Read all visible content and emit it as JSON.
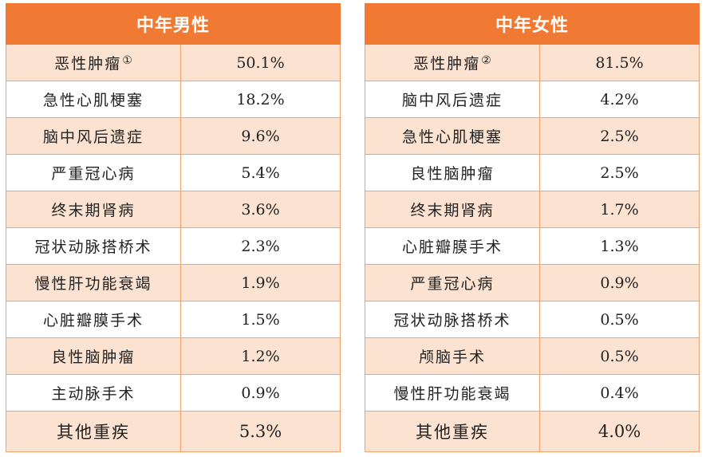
{
  "male": {
    "title": "中年男性",
    "rows": [
      {
        "name": "恶性肿瘤",
        "note": "①",
        "pct": "50.1%"
      },
      {
        "name": "急性心肌梗塞",
        "pct": "18.2%"
      },
      {
        "name": "脑中风后遗症",
        "pct": "9.6%"
      },
      {
        "name": "严重冠心病",
        "pct": "5.4%"
      },
      {
        "name": "终末期肾病",
        "pct": "3.6%"
      },
      {
        "name": "冠状动脉搭桥术",
        "pct": "2.3%"
      },
      {
        "name": "慢性肝功能衰竭",
        "pct": "1.9%"
      },
      {
        "name": "心脏瓣膜手术",
        "pct": "1.5%"
      },
      {
        "name": "良性脑肿瘤",
        "pct": "1.2%"
      },
      {
        "name": "主动脉手术",
        "pct": "0.9%"
      },
      {
        "name": "其他重疾",
        "pct": "5.3%"
      }
    ]
  },
  "female": {
    "title": "中年女性",
    "rows": [
      {
        "name": "恶性肿瘤",
        "note": "②",
        "pct": "81.5%"
      },
      {
        "name": "脑中风后遗症",
        "pct": "4.2%"
      },
      {
        "name": "急性心肌梗塞",
        "pct": "2.5%"
      },
      {
        "name": "良性脑肿瘤",
        "pct": "2.5%"
      },
      {
        "name": "终末期肾病",
        "pct": "1.7%"
      },
      {
        "name": "心脏瓣膜手术",
        "pct": "1.3%"
      },
      {
        "name": "严重冠心病",
        "pct": "0.9%"
      },
      {
        "name": "冠状动脉搭桥术",
        "pct": "0.5%"
      },
      {
        "name": "颅脑手术",
        "pct": "0.5%"
      },
      {
        "name": "慢性肝功能衰竭",
        "pct": "0.4%"
      },
      {
        "name": "其他重疾",
        "pct": "4.0%"
      }
    ]
  },
  "colors": {
    "header_bg": "#f07a33",
    "header_text": "#ffffff",
    "row_alt_bg": "#fce2d0",
    "row_bg": "#ffffff",
    "grid_line": "#f2a26a"
  }
}
